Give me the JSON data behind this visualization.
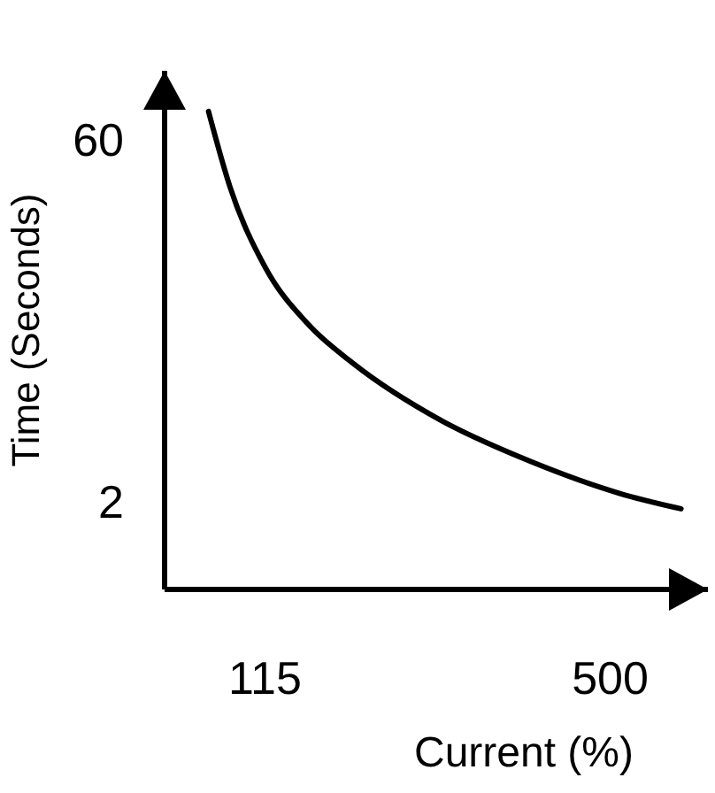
{
  "chart_data": {
    "type": "line",
    "xlabel": "Current (%)",
    "ylabel": "Time (Seconds)",
    "x": [
      52,
      76,
      115,
      164,
      214,
      312,
      411,
      510,
      579
    ],
    "values": [
      64.5,
      52.4,
      39.6,
      30.3,
      24.1,
      15,
      8.5,
      3.4,
      0.9
    ],
    "color": "#000000",
    "xlim": [
      3,
      609
    ],
    "ylim": [
      -12,
      71
    ],
    "xticks": [
      115,
      500
    ],
    "yticks": [
      2,
      60
    ]
  }
}
